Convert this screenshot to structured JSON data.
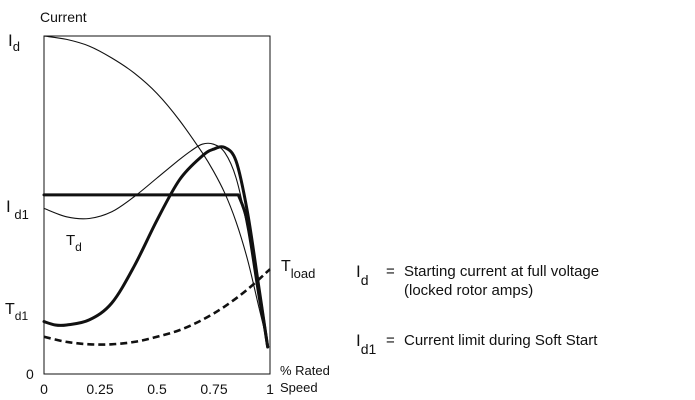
{
  "chart_data": {
    "type": "line",
    "title": "",
    "ylabel": "Current",
    "xlabel": "% Rated Speed",
    "xlabel_lines": [
      "% Rated",
      "Speed"
    ],
    "xlim": [
      0,
      1
    ],
    "ylim": [
      0,
      1
    ],
    "x_ticks": [
      "0",
      "0.25",
      "0.5",
      "0.75",
      "1"
    ],
    "y_labels": {
      "id": {
        "base": "I",
        "sub": "d"
      },
      "id1": {
        "base": "I",
        "sub": " d1"
      },
      "td1": {
        "base": "T",
        "sub": "d1"
      },
      "zero": "0"
    },
    "curve_labels": {
      "td": {
        "base": "T",
        "sub": "d"
      },
      "tload": {
        "base": "T",
        "sub": "load"
      }
    },
    "series": [
      {
        "key": "full_voltage_current",
        "style": "thin",
        "x": [
          0,
          0.1,
          0.2,
          0.3,
          0.4,
          0.5,
          0.6,
          0.7,
          0.75,
          0.8,
          0.85,
          0.9,
          0.95,
          0.99
        ],
        "y": [
          1.0,
          0.99,
          0.97,
          0.935,
          0.89,
          0.83,
          0.75,
          0.655,
          0.6,
          0.535,
          0.45,
          0.34,
          0.2,
          0.09
        ]
      },
      {
        "key": "full_voltage_torque_td",
        "style": "thin",
        "x": [
          0,
          0.1,
          0.2,
          0.3,
          0.4,
          0.5,
          0.6,
          0.65,
          0.7,
          0.75,
          0.8,
          0.85,
          0.9,
          0.95,
          0.99
        ],
        "y": [
          0.49,
          0.465,
          0.46,
          0.48,
          0.525,
          0.58,
          0.635,
          0.66,
          0.68,
          0.68,
          0.655,
          0.58,
          0.43,
          0.22,
          0.08
        ]
      },
      {
        "key": "current_limit_id1",
        "style": "thick",
        "x": [
          0,
          0.2,
          0.4,
          0.6,
          0.8,
          0.86,
          0.9,
          0.95,
          0.99
        ],
        "y": [
          0.53,
          0.53,
          0.53,
          0.53,
          0.53,
          0.53,
          0.45,
          0.25,
          0.08
        ]
      },
      {
        "key": "soft_start_torque",
        "style": "thick",
        "x": [
          0,
          0.05,
          0.1,
          0.2,
          0.3,
          0.4,
          0.5,
          0.6,
          0.7,
          0.75,
          0.8,
          0.85,
          0.9,
          0.95,
          0.99
        ],
        "y": [
          0.155,
          0.145,
          0.145,
          0.16,
          0.21,
          0.32,
          0.455,
          0.575,
          0.645,
          0.665,
          0.67,
          0.63,
          0.48,
          0.26,
          0.08
        ]
      },
      {
        "key": "load_torque",
        "style": "dashed",
        "x": [
          0,
          0.1,
          0.2,
          0.3,
          0.4,
          0.5,
          0.6,
          0.7,
          0.8,
          0.9,
          1.0
        ],
        "y": [
          0.11,
          0.095,
          0.088,
          0.088,
          0.095,
          0.11,
          0.13,
          0.16,
          0.2,
          0.25,
          0.31
        ]
      }
    ],
    "grid": false,
    "legend": {
      "items": [
        {
          "symbol": {
            "base": "I",
            "sub": "d"
          },
          "eq": "=",
          "lines": [
            "Starting current at full voltage",
            "(locked rotor amps)"
          ]
        },
        {
          "symbol": {
            "base": "I",
            "sub": "d1"
          },
          "eq": "=",
          "lines": [
            "Current limit during Soft Start"
          ]
        }
      ]
    }
  }
}
